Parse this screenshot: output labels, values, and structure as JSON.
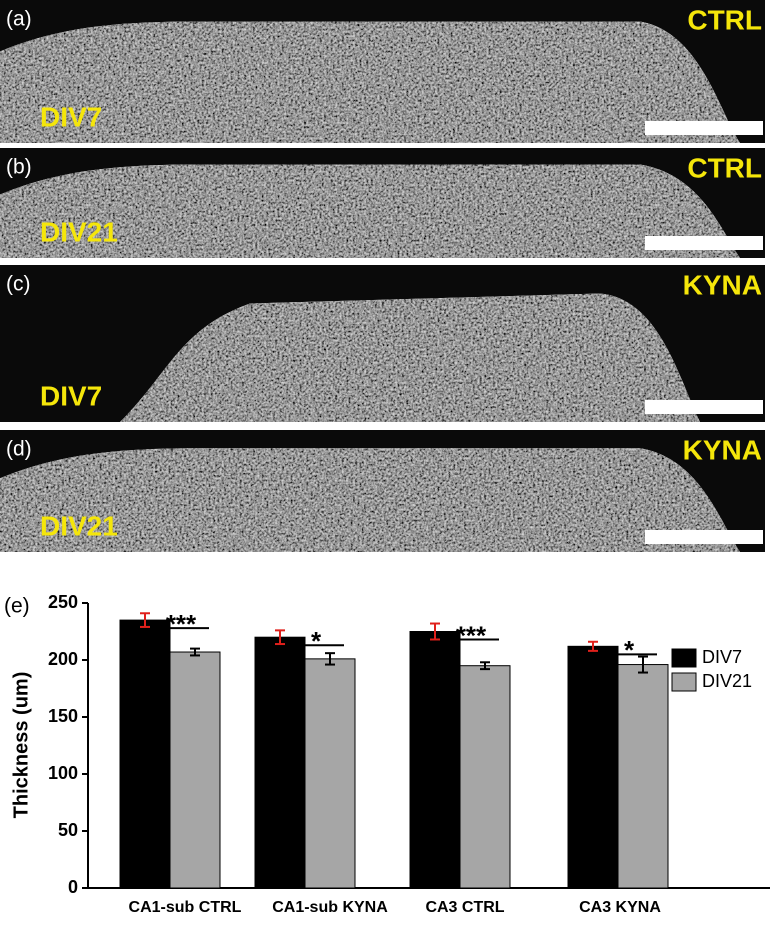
{
  "panels": [
    {
      "label": "(a)",
      "treatment": "CTRL",
      "day": "DIV7"
    },
    {
      "label": "(b)",
      "treatment": "CTRL",
      "day": "DIV21"
    },
    {
      "label": "(c)",
      "treatment": "KYNA",
      "day": "DIV7"
    },
    {
      "label": "(d)",
      "treatment": "KYNA",
      "day": "DIV21"
    }
  ],
  "chart_data": {
    "type": "bar",
    "panel_label": "(e)",
    "y_label": "Thickness (um)",
    "categories": [
      "CA1-sub CTRL",
      "CA1-sub KYNA",
      "CA3 CTRL",
      "CA3 KYNA"
    ],
    "series": [
      {
        "name": "DIV7",
        "color": "#000000",
        "error_color": "#e0201b",
        "values": [
          235,
          220,
          225,
          212
        ],
        "errors": [
          6,
          6,
          7,
          4
        ]
      },
      {
        "name": "DIV21",
        "color": "#a6a6a6",
        "error_color": "#000000",
        "values": [
          207,
          201,
          195,
          196
        ],
        "errors": [
          3,
          5,
          3,
          7
        ]
      }
    ],
    "significance": [
      "***",
      "*",
      "***",
      "*"
    ],
    "ylim": [
      0,
      250
    ],
    "yticks": [
      0,
      50,
      100,
      150,
      200,
      250
    ],
    "legend": "top-right"
  }
}
